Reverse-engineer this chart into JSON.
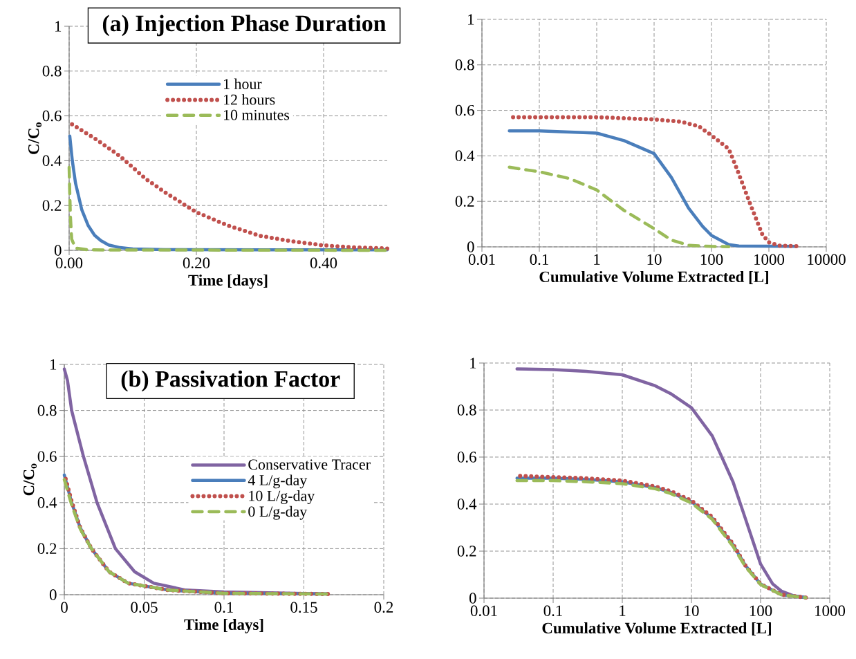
{
  "chart_data": [
    {
      "type": "line",
      "title": "(a) Injection Phase Duration",
      "xlabel": "Time [days]",
      "ylabel": "C/C$_{o}$",
      "xlim": [
        0,
        0.5
      ],
      "xticks": [
        {
          "value": 0,
          "label": "0.00"
        },
        {
          "value": 0.2,
          "label": "0.20"
        },
        {
          "value": 0.4,
          "label": "0.40"
        }
      ],
      "ylim": [
        0,
        1
      ],
      "yticks": [
        0,
        0.2,
        0.4,
        0.6,
        0.8,
        1
      ],
      "grid": true,
      "legend": "top",
      "marker": "none",
      "series": [
        {
          "name": "1 hour",
          "color": "#4a7ebb",
          "line_style": "solid",
          "x": [
            0.001,
            0.005,
            0.01,
            0.02,
            0.03,
            0.04,
            0.05,
            0.062,
            0.08,
            0.1,
            0.15,
            0.3,
            0.5
          ],
          "values": [
            0.51,
            0.4,
            0.3,
            0.18,
            0.11,
            0.067,
            0.043,
            0.024,
            0.012,
            0.006,
            0.003,
            0.002,
            0.002
          ]
        },
        {
          "name": "12 hours",
          "color": "#c0504d",
          "line_style": "dotted",
          "x": [
            0,
            0.04,
            0.08,
            0.1,
            0.12,
            0.15,
            0.2,
            0.25,
            0.3,
            0.35,
            0.4,
            0.45,
            0.5
          ],
          "values": [
            0.57,
            0.5,
            0.42,
            0.37,
            0.32,
            0.26,
            0.17,
            0.11,
            0.065,
            0.04,
            0.022,
            0.013,
            0.008
          ]
        },
        {
          "name": "10 minutes",
          "color": "#9bbb59",
          "line_style": "dashed",
          "x": [
            0,
            0.001,
            0.002,
            0.004,
            0.01,
            0.03,
            0.5
          ],
          "values": [
            0.37,
            0.25,
            0.15,
            0.05,
            0.01,
            0.002,
            0
          ]
        }
      ]
    },
    {
      "type": "line",
      "xlabel": "Cumulative Volume Extracted [L]",
      "log": "x",
      "xlim": [
        0.01,
        10000
      ],
      "xticks": [
        0.01,
        0.1,
        1,
        10,
        100,
        1000,
        10000
      ],
      "ylim": [
        0,
        1
      ],
      "yticks": [
        0,
        0.2,
        0.4,
        0.6,
        0.8,
        1
      ],
      "grid": true,
      "marker": "none",
      "series": [
        {
          "color": "#4a7ebb",
          "line_style": "solid",
          "x": [
            0.03,
            0.1,
            1,
            3,
            10,
            20,
            40,
            70,
            100,
            200,
            300,
            3000
          ],
          "values": [
            0.51,
            0.51,
            0.5,
            0.467,
            0.41,
            0.305,
            0.17,
            0.09,
            0.05,
            0.01,
            0.004,
            0.002
          ]
        },
        {
          "color": "#c0504d",
          "line_style": "dotted",
          "x": [
            0.03,
            1,
            10,
            30,
            60,
            100,
            200,
            270,
            470,
            770,
            1000,
            1500,
            3000
          ],
          "values": [
            0.57,
            0.57,
            0.56,
            0.55,
            0.53,
            0.49,
            0.43,
            0.35,
            0.19,
            0.054,
            0.02,
            0.005,
            0.003
          ]
        },
        {
          "color": "#9bbb59",
          "line_style": "dashed",
          "x": [
            0.03,
            0.1,
            0.34,
            1,
            3,
            10,
            20,
            40,
            100,
            200
          ],
          "values": [
            0.35,
            0.33,
            0.3,
            0.25,
            0.16,
            0.08,
            0.03,
            0.007,
            0.002,
            0.001
          ]
        }
      ]
    },
    {
      "type": "line",
      "title": "(b) Passivation Factor",
      "xlabel": "Time [days]",
      "ylabel": "C/C$_{o}$",
      "xlim": [
        0,
        0.2
      ],
      "xticks": [
        0,
        0.05,
        0.1,
        0.15,
        0.2
      ],
      "ylim": [
        0,
        1
      ],
      "yticks": [
        0,
        0.2,
        0.4,
        0.6,
        0.8,
        1
      ],
      "grid": true,
      "legend": "right",
      "marker": "none",
      "series": [
        {
          "name": "Conservative Tracer",
          "color": "#8064a2",
          "line_style": "solid",
          "x": [
            0,
            0.002,
            0.0046,
            0.012,
            0.0205,
            0.032,
            0.044,
            0.056,
            0.076,
            0.1,
            0.15,
            0.165
          ],
          "values": [
            0.98,
            0.93,
            0.8,
            0.6,
            0.4,
            0.2,
            0.1,
            0.05,
            0.02,
            0.012,
            0.005,
            0.004
          ]
        },
        {
          "name": "4 L/g-day",
          "color": "#4a7ebb",
          "line_style": "solid",
          "x": [
            0,
            0.0046,
            0.01,
            0.017,
            0.028,
            0.04,
            0.065,
            0.1,
            0.165
          ],
          "values": [
            0.52,
            0.4,
            0.29,
            0.2,
            0.1,
            0.05,
            0.02,
            0.006,
            0.003
          ]
        },
        {
          "name": "10 L/g-day",
          "color": "#c0504d",
          "line_style": "dotted",
          "x": [
            0,
            0.0046,
            0.01,
            0.017,
            0.028,
            0.04,
            0.065,
            0.1,
            0.165
          ],
          "values": [
            0.525,
            0.405,
            0.29,
            0.2,
            0.1,
            0.05,
            0.02,
            0.006,
            0.003
          ]
        },
        {
          "name": "0 L/g-day",
          "color": "#9bbb59",
          "line_style": "dashed",
          "x": [
            0,
            0.0046,
            0.01,
            0.017,
            0.028,
            0.04,
            0.065,
            0.1,
            0.165
          ],
          "values": [
            0.5,
            0.39,
            0.285,
            0.2,
            0.1,
            0.05,
            0.02,
            0.006,
            0.003
          ]
        }
      ]
    },
    {
      "type": "line",
      "xlabel": "Cumulative Volume Extracted [L]",
      "log": "x",
      "xlim": [
        0.01,
        1000
      ],
      "xticks": [
        0.01,
        0.1,
        1,
        10,
        100,
        1000
      ],
      "ylim": [
        0,
        1
      ],
      "yticks": [
        0,
        0.2,
        0.4,
        0.6,
        0.8,
        1
      ],
      "grid": true,
      "marker": "none",
      "series": [
        {
          "color": "#8064a2",
          "line_style": "solid",
          "x": [
            0.03,
            0.1,
            0.3,
            1,
            3,
            5,
            10,
            20,
            40,
            60,
            100,
            150,
            200,
            300,
            450
          ],
          "values": [
            0.975,
            0.972,
            0.965,
            0.95,
            0.903,
            0.87,
            0.81,
            0.69,
            0.494,
            0.34,
            0.145,
            0.06,
            0.03,
            0.01,
            0.003
          ]
        },
        {
          "color": "#4a7ebb",
          "line_style": "solid",
          "x": [
            0.03,
            0.1,
            0.3,
            1,
            3,
            5,
            10,
            20,
            40,
            60,
            100,
            200,
            450
          ],
          "values": [
            0.51,
            0.51,
            0.505,
            0.495,
            0.47,
            0.45,
            0.41,
            0.34,
            0.227,
            0.14,
            0.06,
            0.015,
            0.002
          ]
        },
        {
          "color": "#c0504d",
          "line_style": "dotted",
          "x": [
            0.03,
            0.1,
            0.3,
            1,
            3,
            5,
            10,
            20,
            40,
            60,
            100,
            200,
            450
          ],
          "values": [
            0.52,
            0.515,
            0.51,
            0.5,
            0.475,
            0.455,
            0.415,
            0.345,
            0.23,
            0.14,
            0.06,
            0.015,
            0.002
          ]
        },
        {
          "color": "#9bbb59",
          "line_style": "dashed",
          "x": [
            0.03,
            0.1,
            0.3,
            1,
            3,
            5,
            10,
            20,
            40,
            60,
            100,
            200,
            450
          ],
          "values": [
            0.5,
            0.5,
            0.495,
            0.487,
            0.465,
            0.445,
            0.405,
            0.335,
            0.22,
            0.135,
            0.058,
            0.014,
            0.002
          ]
        }
      ]
    }
  ]
}
